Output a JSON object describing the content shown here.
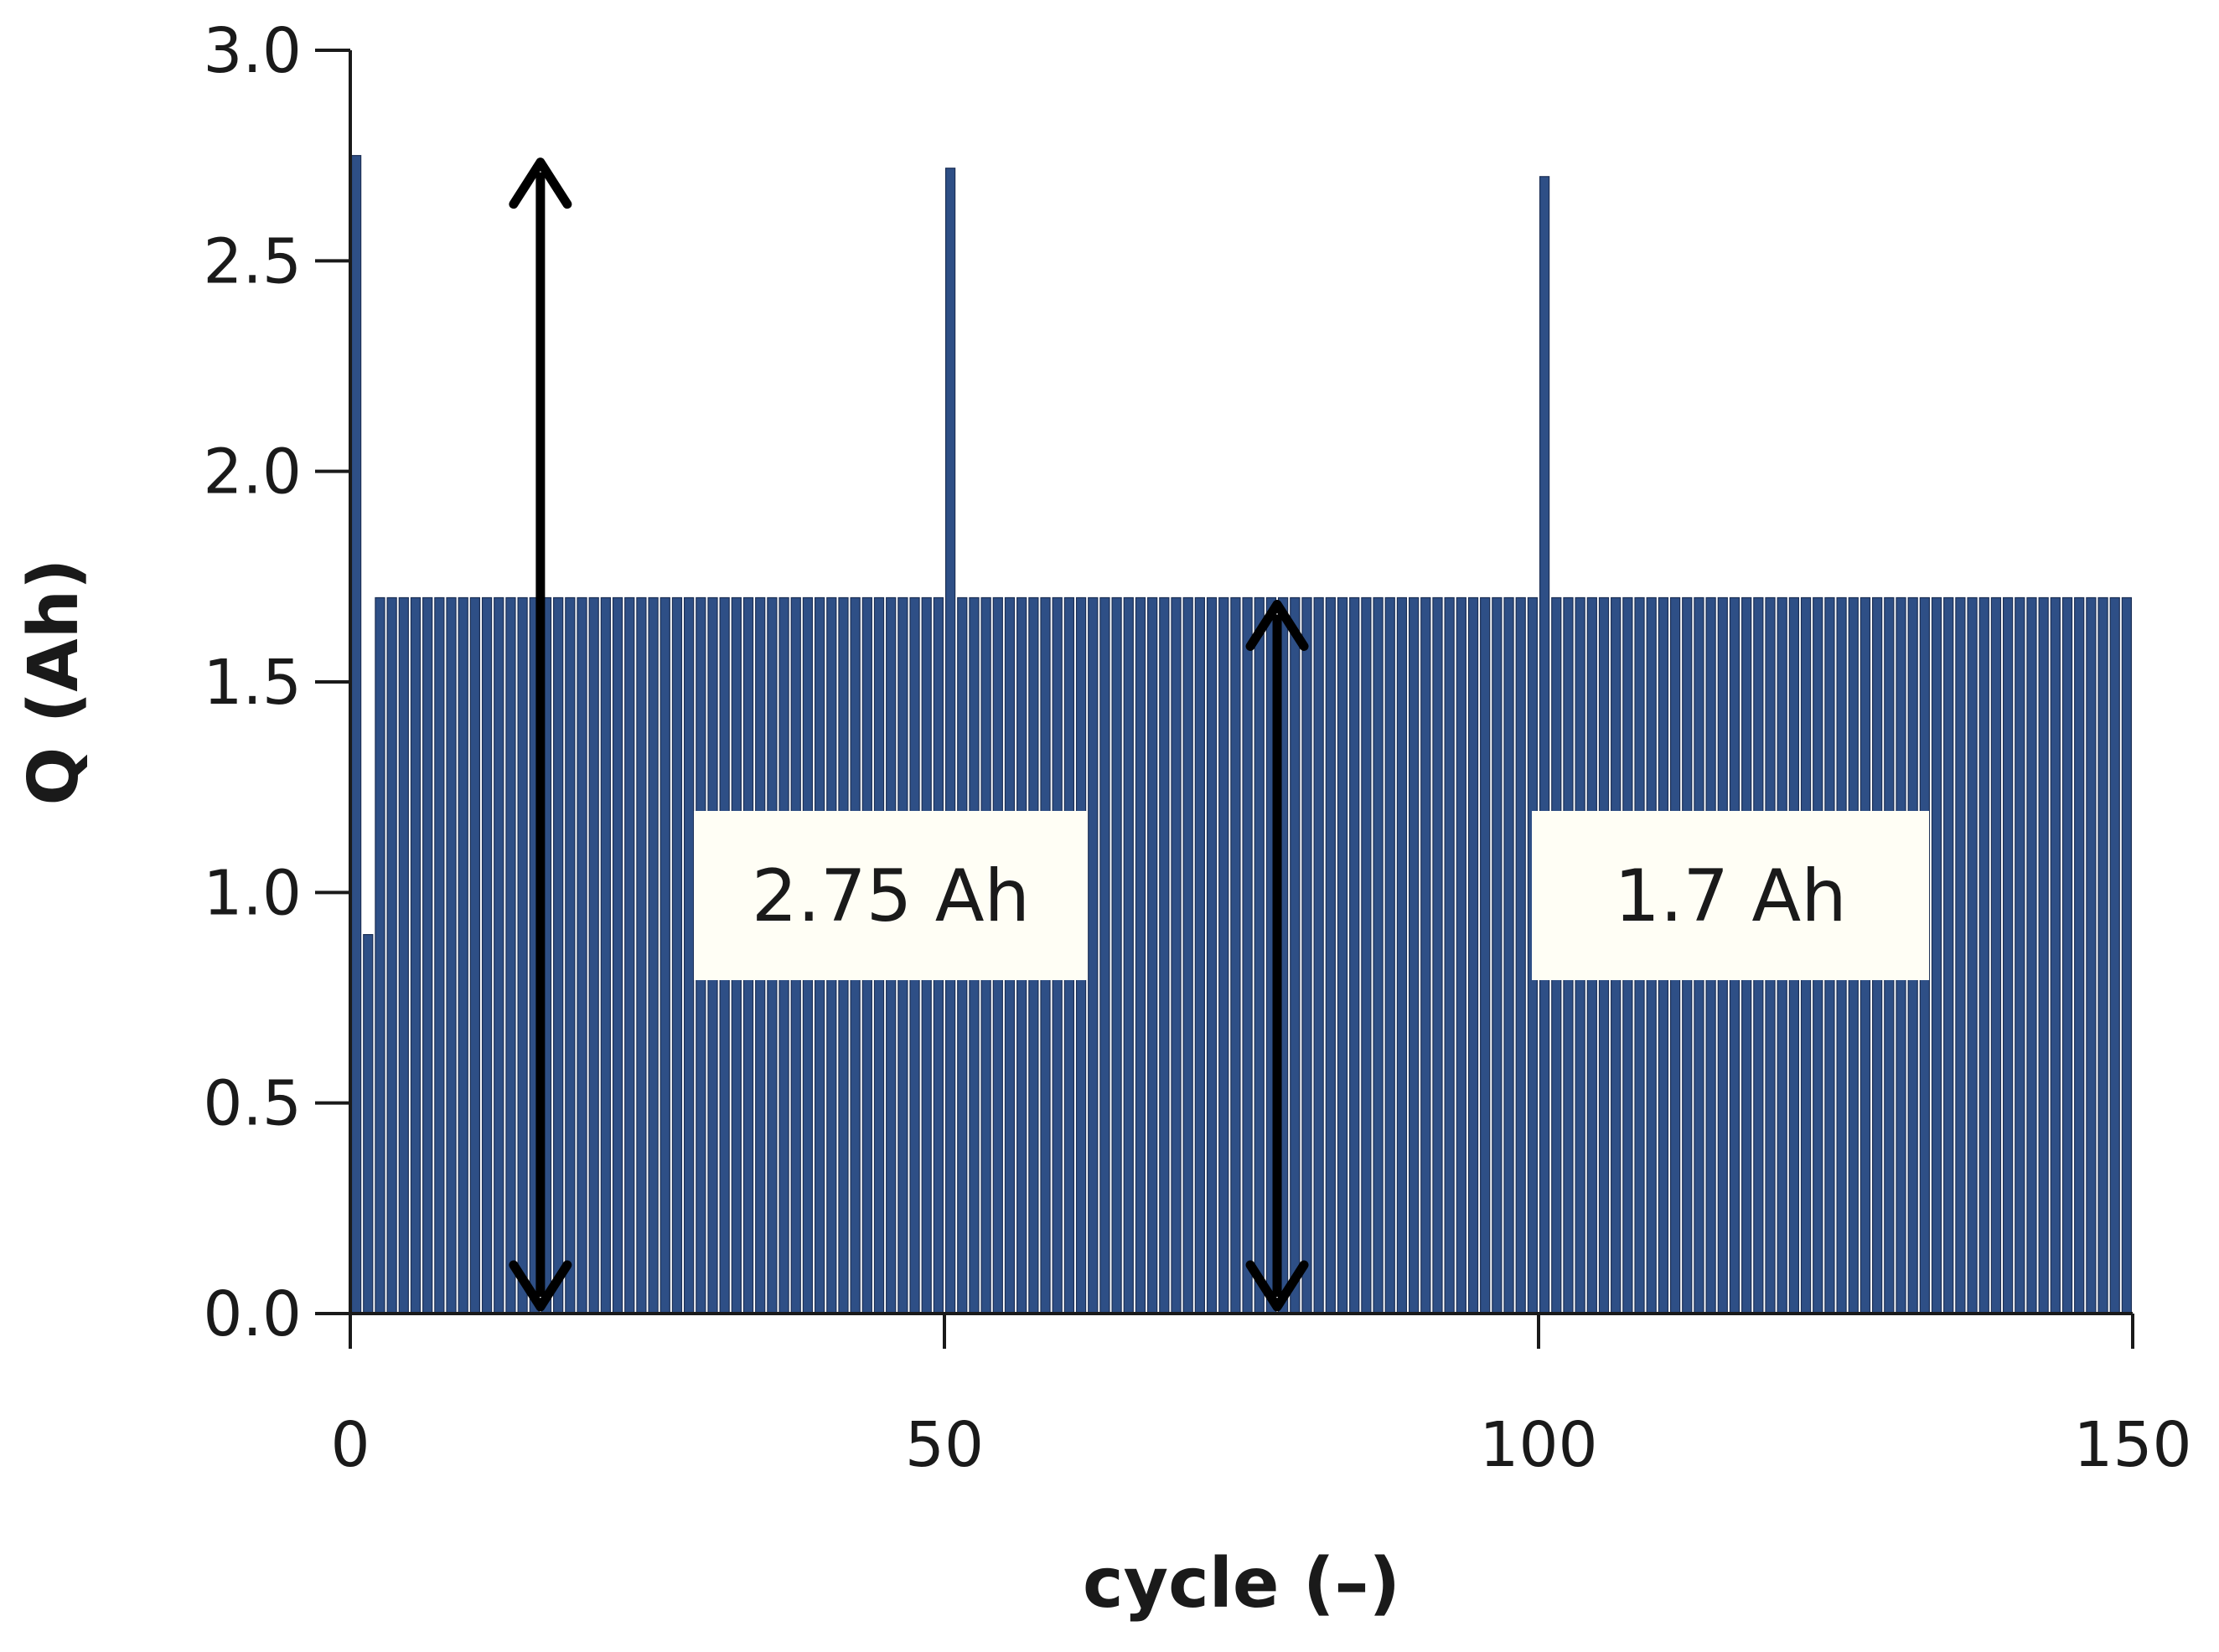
{
  "chart_data": {
    "type": "bar",
    "xlabel": "cycle (–)",
    "ylabel": "Q (Ah)",
    "xlim": [
      0,
      150
    ],
    "ylim": [
      0,
      3.0
    ],
    "xticks": [
      "0",
      "50",
      "100",
      "150"
    ],
    "yticks": [
      "0.0",
      "0.5",
      "1.0",
      "1.5",
      "2.0",
      "2.5",
      "3.0"
    ],
    "grid": false,
    "series": [
      {
        "default_value": 1.7,
        "first_cycle": 1,
        "last_cycle": 150,
        "overrides": [
          {
            "x": 1,
            "y": 2.75
          },
          {
            "x": 2,
            "y": 0.9
          },
          {
            "x": 51,
            "y": 2.72
          },
          {
            "x": 101,
            "y": 2.7
          }
        ]
      }
    ],
    "annotations": [
      {
        "text": "2.75 Ah",
        "x": 16,
        "y_from": 0,
        "y_to": 2.75
      },
      {
        "text": "1.7 Ah",
        "x": 78,
        "y_from": 0,
        "y_to": 1.7
      }
    ],
    "colors": {
      "bar": "#2e4f86",
      "bar_edge": "#1c2f55",
      "axis": "#1a1a1a",
      "arrow": "#000000"
    }
  }
}
